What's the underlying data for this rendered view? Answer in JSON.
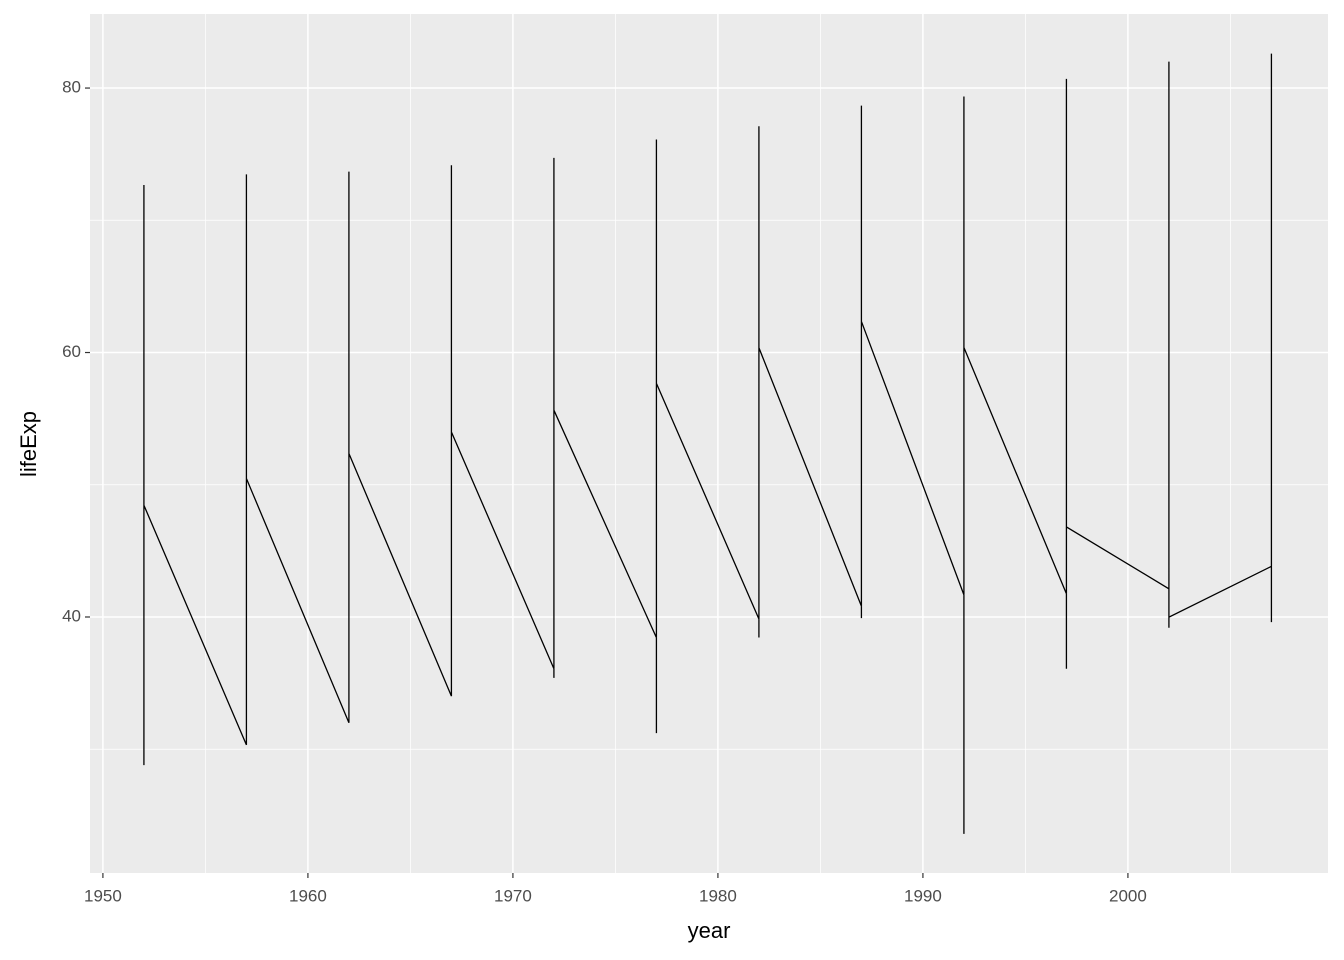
{
  "chart_data": {
    "type": "line",
    "x_label": "year",
    "y_label": "lifeExp",
    "x": [
      1952,
      1952,
      1952,
      1952,
      1957,
      1957,
      1957,
      1957,
      1962,
      1962,
      1962,
      1962,
      1967,
      1967,
      1967,
      1967,
      1972,
      1972,
      1972,
      1972,
      1977,
      1977,
      1977,
      1977,
      1982,
      1982,
      1982,
      1982,
      1987,
      1987,
      1987,
      1987,
      1992,
      1992,
      1992,
      1992,
      1997,
      1997,
      1997,
      1997,
      2002,
      2002,
      2002,
      2002,
      2007,
      2007,
      2007,
      2007
    ],
    "series": [
      {
        "color": "#000000",
        "values": [
          28.8,
          72.67,
          28.8,
          48.45,
          30.33,
          73.47,
          30.33,
          50.47,
          32.0,
          73.68,
          32.0,
          52.36,
          34.02,
          74.16,
          34.02,
          53.99,
          36.09,
          74.72,
          35.4,
          55.64,
          38.44,
          76.11,
          31.22,
          57.67,
          39.85,
          77.11,
          38.45,
          60.36,
          40.82,
          78.67,
          39.91,
          62.35,
          41.67,
          79.36,
          23.6,
          60.38,
          41.76,
          80.69,
          36.09,
          46.81,
          42.13,
          82.0,
          39.19,
          39.99,
          43.83,
          82.6,
          39.61,
          43.49
        ]
      }
    ],
    "xlim": [
      1949.37,
      2009.76
    ],
    "xticks": [
      1950,
      1960,
      1970,
      1980,
      1990,
      2000
    ],
    "ylim": [
      20.64,
      85.6
    ],
    "yticks": [
      40,
      60,
      80
    ],
    "grid": true,
    "panel_color": "#ebebeb"
  }
}
